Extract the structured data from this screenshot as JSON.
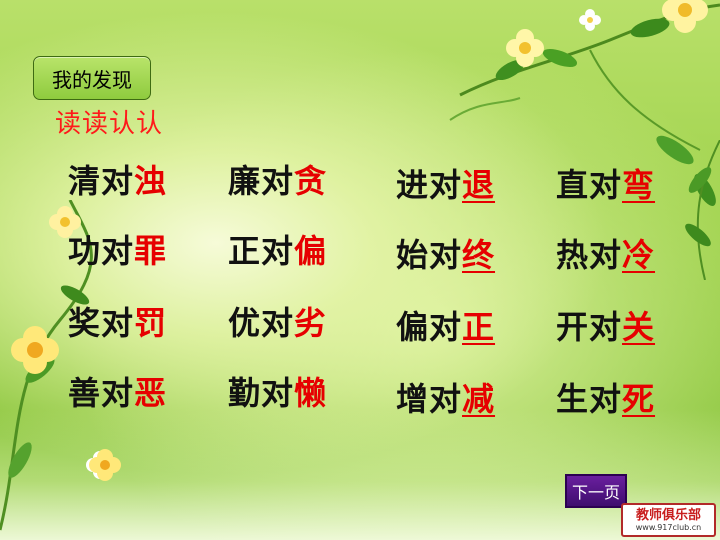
{
  "badge": {
    "label": "我的发现"
  },
  "subtitle": "读读认认",
  "columns": [
    {
      "pairs": [
        {
          "pre": "清对",
          "ans": "浊"
        },
        {
          "pre": "功对",
          "ans": "罪"
        },
        {
          "pre": "奖对",
          "ans": "罚"
        },
        {
          "pre": "善对",
          "ans": "恶"
        }
      ]
    },
    {
      "pairs": [
        {
          "pre": "廉对",
          "ans": "贪"
        },
        {
          "pre": "正对",
          "ans": "偏"
        },
        {
          "pre": "优对",
          "ans": "劣"
        },
        {
          "pre": "勤对",
          "ans": "懒"
        }
      ]
    },
    {
      "pairs": [
        {
          "pre": "进对",
          "ans": "退"
        },
        {
          "pre": "始对",
          "ans": "终"
        },
        {
          "pre": "偏对",
          "ans": "正"
        },
        {
          "pre": "增对",
          "ans": "减"
        }
      ]
    },
    {
      "pairs": [
        {
          "pre": "直对",
          "ans": "弯"
        },
        {
          "pre": "热对",
          "ans": "冷"
        },
        {
          "pre": "开对",
          "ans": "关"
        },
        {
          "pre": "生对",
          "ans": "死"
        }
      ]
    }
  ],
  "next_button": {
    "label": "下一页"
  },
  "watermark": {
    "line1": "教师俱乐部",
    "line2": "www.917club.cn"
  }
}
